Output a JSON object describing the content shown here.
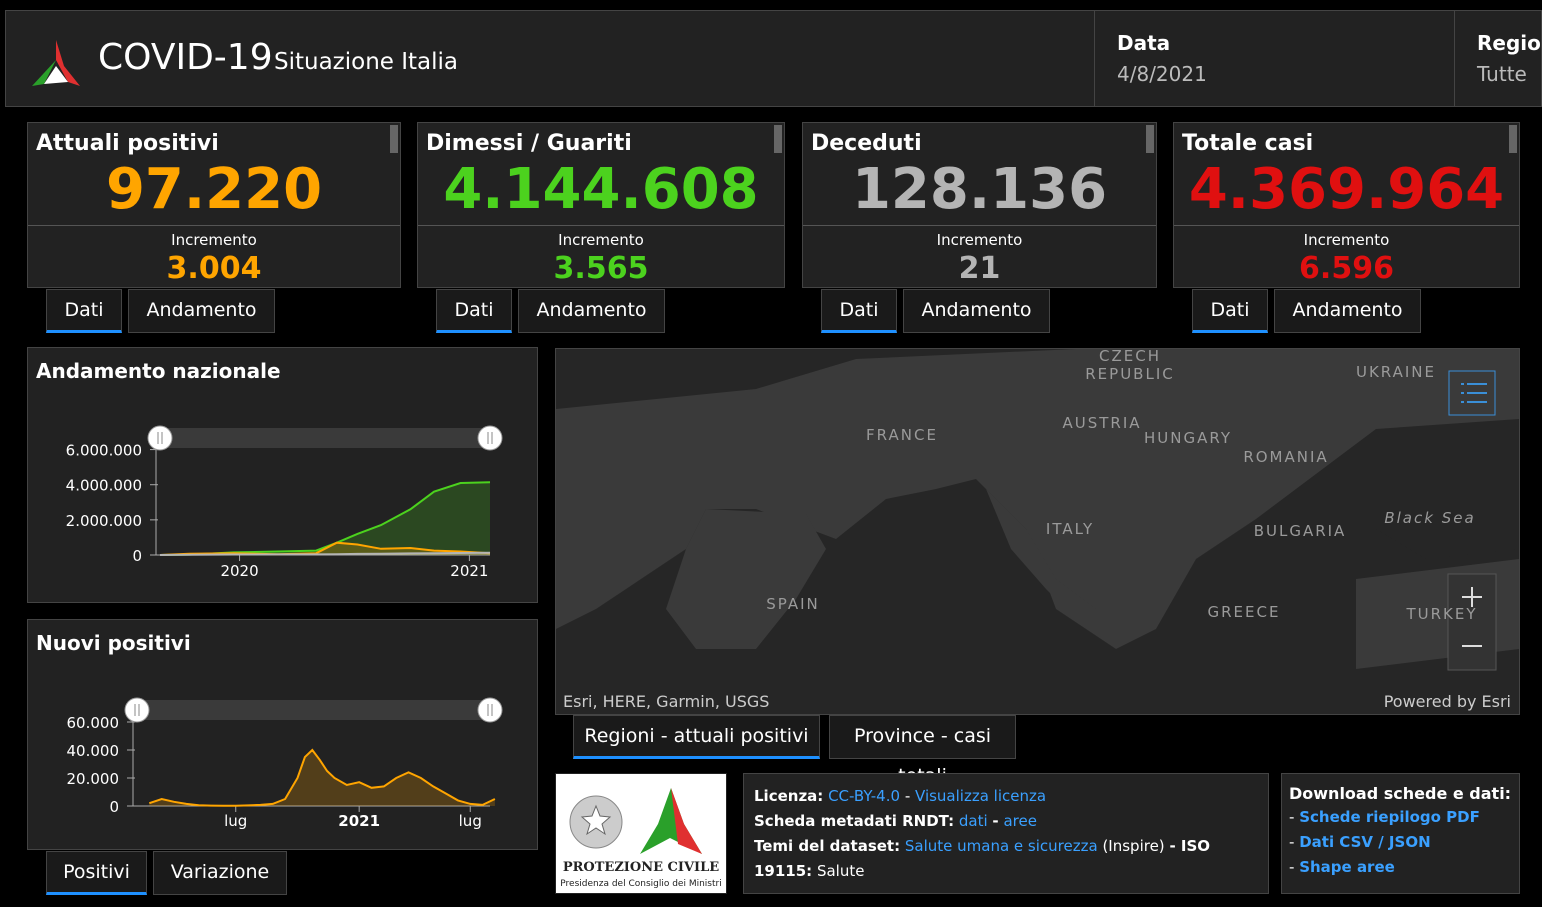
{
  "header": {
    "title": "COVID-19",
    "subtitle": "Situazione Italia",
    "date_label": "Data",
    "date_value": "4/8/2021",
    "region_label": "Region",
    "region_value": "Tutte"
  },
  "cards": [
    {
      "title": "Attuali positivi",
      "value": "97.220",
      "increment_label": "Incremento",
      "increment": "3.004",
      "color": "#ffa500",
      "tabs": [
        "Dati",
        "Andamento"
      ]
    },
    {
      "title": "Dimessi / Guariti",
      "value": "4.144.608",
      "increment_label": "Incremento",
      "increment": "3.565",
      "color": "#4cd21e",
      "tabs": [
        "Dati",
        "Andamento"
      ]
    },
    {
      "title": "Deceduti",
      "value": "128.136",
      "increment_label": "Incremento",
      "increment": "21",
      "color": "#b4b4b4",
      "tabs": [
        "Dati",
        "Andamento"
      ]
    },
    {
      "title": "Totale casi",
      "value": "4.369.964",
      "increment_label": "Incremento",
      "increment": "6.596",
      "color": "#e01010",
      "tabs": [
        "Dati",
        "Andamento"
      ]
    }
  ],
  "chart_data": [
    {
      "type": "area",
      "title": "Andamento nazionale",
      "x": [
        2020.15,
        2020.25,
        2020.4,
        2020.55,
        2020.68,
        2020.75,
        2020.82,
        2020.9,
        2021.0,
        2021.08,
        2021.17,
        2021.27
      ],
      "series": [
        {
          "color": "#4cd21e",
          "values": [
            0,
            20000,
            150000,
            200000,
            250000,
            700000,
            1200000,
            1700000,
            2600000,
            3600000,
            4100000,
            4144608
          ]
        },
        {
          "color": "#ffa500",
          "values": [
            0,
            70000,
            100000,
            40000,
            100000,
            700000,
            600000,
            350000,
            400000,
            250000,
            200000,
            97220
          ]
        },
        {
          "color": "#b4b4b4",
          "values": [
            0,
            10000,
            30000,
            35000,
            36000,
            45000,
            60000,
            75000,
            90000,
            100000,
            115000,
            128136
          ]
        }
      ],
      "xlim": [
        2020.15,
        2021.27
      ],
      "xticks": [
        {
          "value": 2020.42,
          "label": "2020"
        },
        {
          "value": 2021.2,
          "label": "2021"
        }
      ],
      "ylim": [
        0,
        7000000
      ],
      "yticks": [
        0,
        {
          "value": 2000000,
          "label": "2.000.000"
        },
        {
          "value": 4000000,
          "label": "4.000.000"
        },
        {
          "value": 6000000,
          "label": "6.000.000"
        }
      ]
    },
    {
      "type": "area",
      "title": "Nuovi positivi",
      "x": [
        2020.15,
        2020.2,
        2020.25,
        2020.3,
        2020.35,
        2020.4,
        2020.45,
        2020.5,
        2020.55,
        2020.6,
        2020.65,
        2020.7,
        2020.75,
        2020.78,
        2020.81,
        2020.84,
        2020.87,
        2020.9,
        2020.95,
        2021.0,
        2021.05,
        2021.1,
        2021.15,
        2021.2,
        2021.25,
        2021.3,
        2021.35,
        2021.4,
        2021.45,
        2021.5,
        2021.55
      ],
      "series": [
        {
          "color": "#ffa500",
          "values": [
            2000,
            5000,
            3000,
            1500,
            500,
            300,
            200,
            200,
            400,
            800,
            1500,
            5000,
            20000,
            35000,
            40000,
            33000,
            25000,
            20000,
            15000,
            17000,
            13000,
            14000,
            20000,
            24000,
            20000,
            14000,
            9000,
            4000,
            1500,
            800,
            5000
          ]
        }
      ],
      "xlim": [
        2020.1,
        2021.53
      ],
      "xticks": [
        {
          "value": 2020.5,
          "label": "lug"
        },
        2021,
        {
          "value": 2021.45,
          "label": "lug"
        }
      ],
      "ylim": [
        0,
        65000
      ],
      "yticks": [
        0,
        {
          "value": 20000,
          "label": "20.000"
        },
        {
          "value": 40000,
          "label": "40.000"
        },
        {
          "value": 60000,
          "label": "60.000"
        }
      ]
    }
  ],
  "chart_tabs": [
    "Positivi",
    "Variazione"
  ],
  "map": {
    "labels": [
      "CZECH REPUBLIC",
      "UKRAINE",
      "FRANCE",
      "AUSTRIA",
      "HUNGARY",
      "ROMANIA",
      "ITALY",
      "BULGARIA",
      "Black Sea",
      "SPAIN",
      "GREECE",
      "TURKEY"
    ],
    "attribution": "Esri, HERE, Garmin, USGS",
    "powered": "Powered by Esri"
  },
  "map_tabs": [
    "Regioni - attuali positivi",
    "Province - casi totali"
  ],
  "footer": {
    "logo_title": "PROTEZIONE CIVILE",
    "logo_sub": "Presidenza del Consiglio dei Ministri",
    "lines": [
      [
        {
          "text": "Licenza:",
          "style": "bold"
        },
        {
          "text": "CC-BY-4.0",
          "style": "link"
        },
        {
          "text": "-",
          "style": "plain"
        },
        {
          "text": "Visualizza licenza",
          "style": "link"
        }
      ],
      [
        {
          "text": "Scheda metadati RNDT:",
          "style": "bold"
        },
        {
          "text": "dati",
          "style": "link"
        },
        {
          "text": "-",
          "style": "bold"
        },
        {
          "text": "aree",
          "style": "link"
        }
      ],
      [
        {
          "text": "Temi del dataset:",
          "style": "bold"
        },
        {
          "text": "Salute umana e sicurezza",
          "style": "link"
        },
        {
          "text": "(Inspire)",
          "style": "plain"
        },
        {
          "text": "- ISO 19115:",
          "style": "bold"
        },
        {
          "text": "Salute",
          "style": "plain"
        }
      ]
    ],
    "download_title": "Download schede e dati:",
    "bullet": "-",
    "downloads": [
      "Schede riepilogo PDF",
      "Dati CSV / JSON",
      "Shape aree"
    ]
  }
}
